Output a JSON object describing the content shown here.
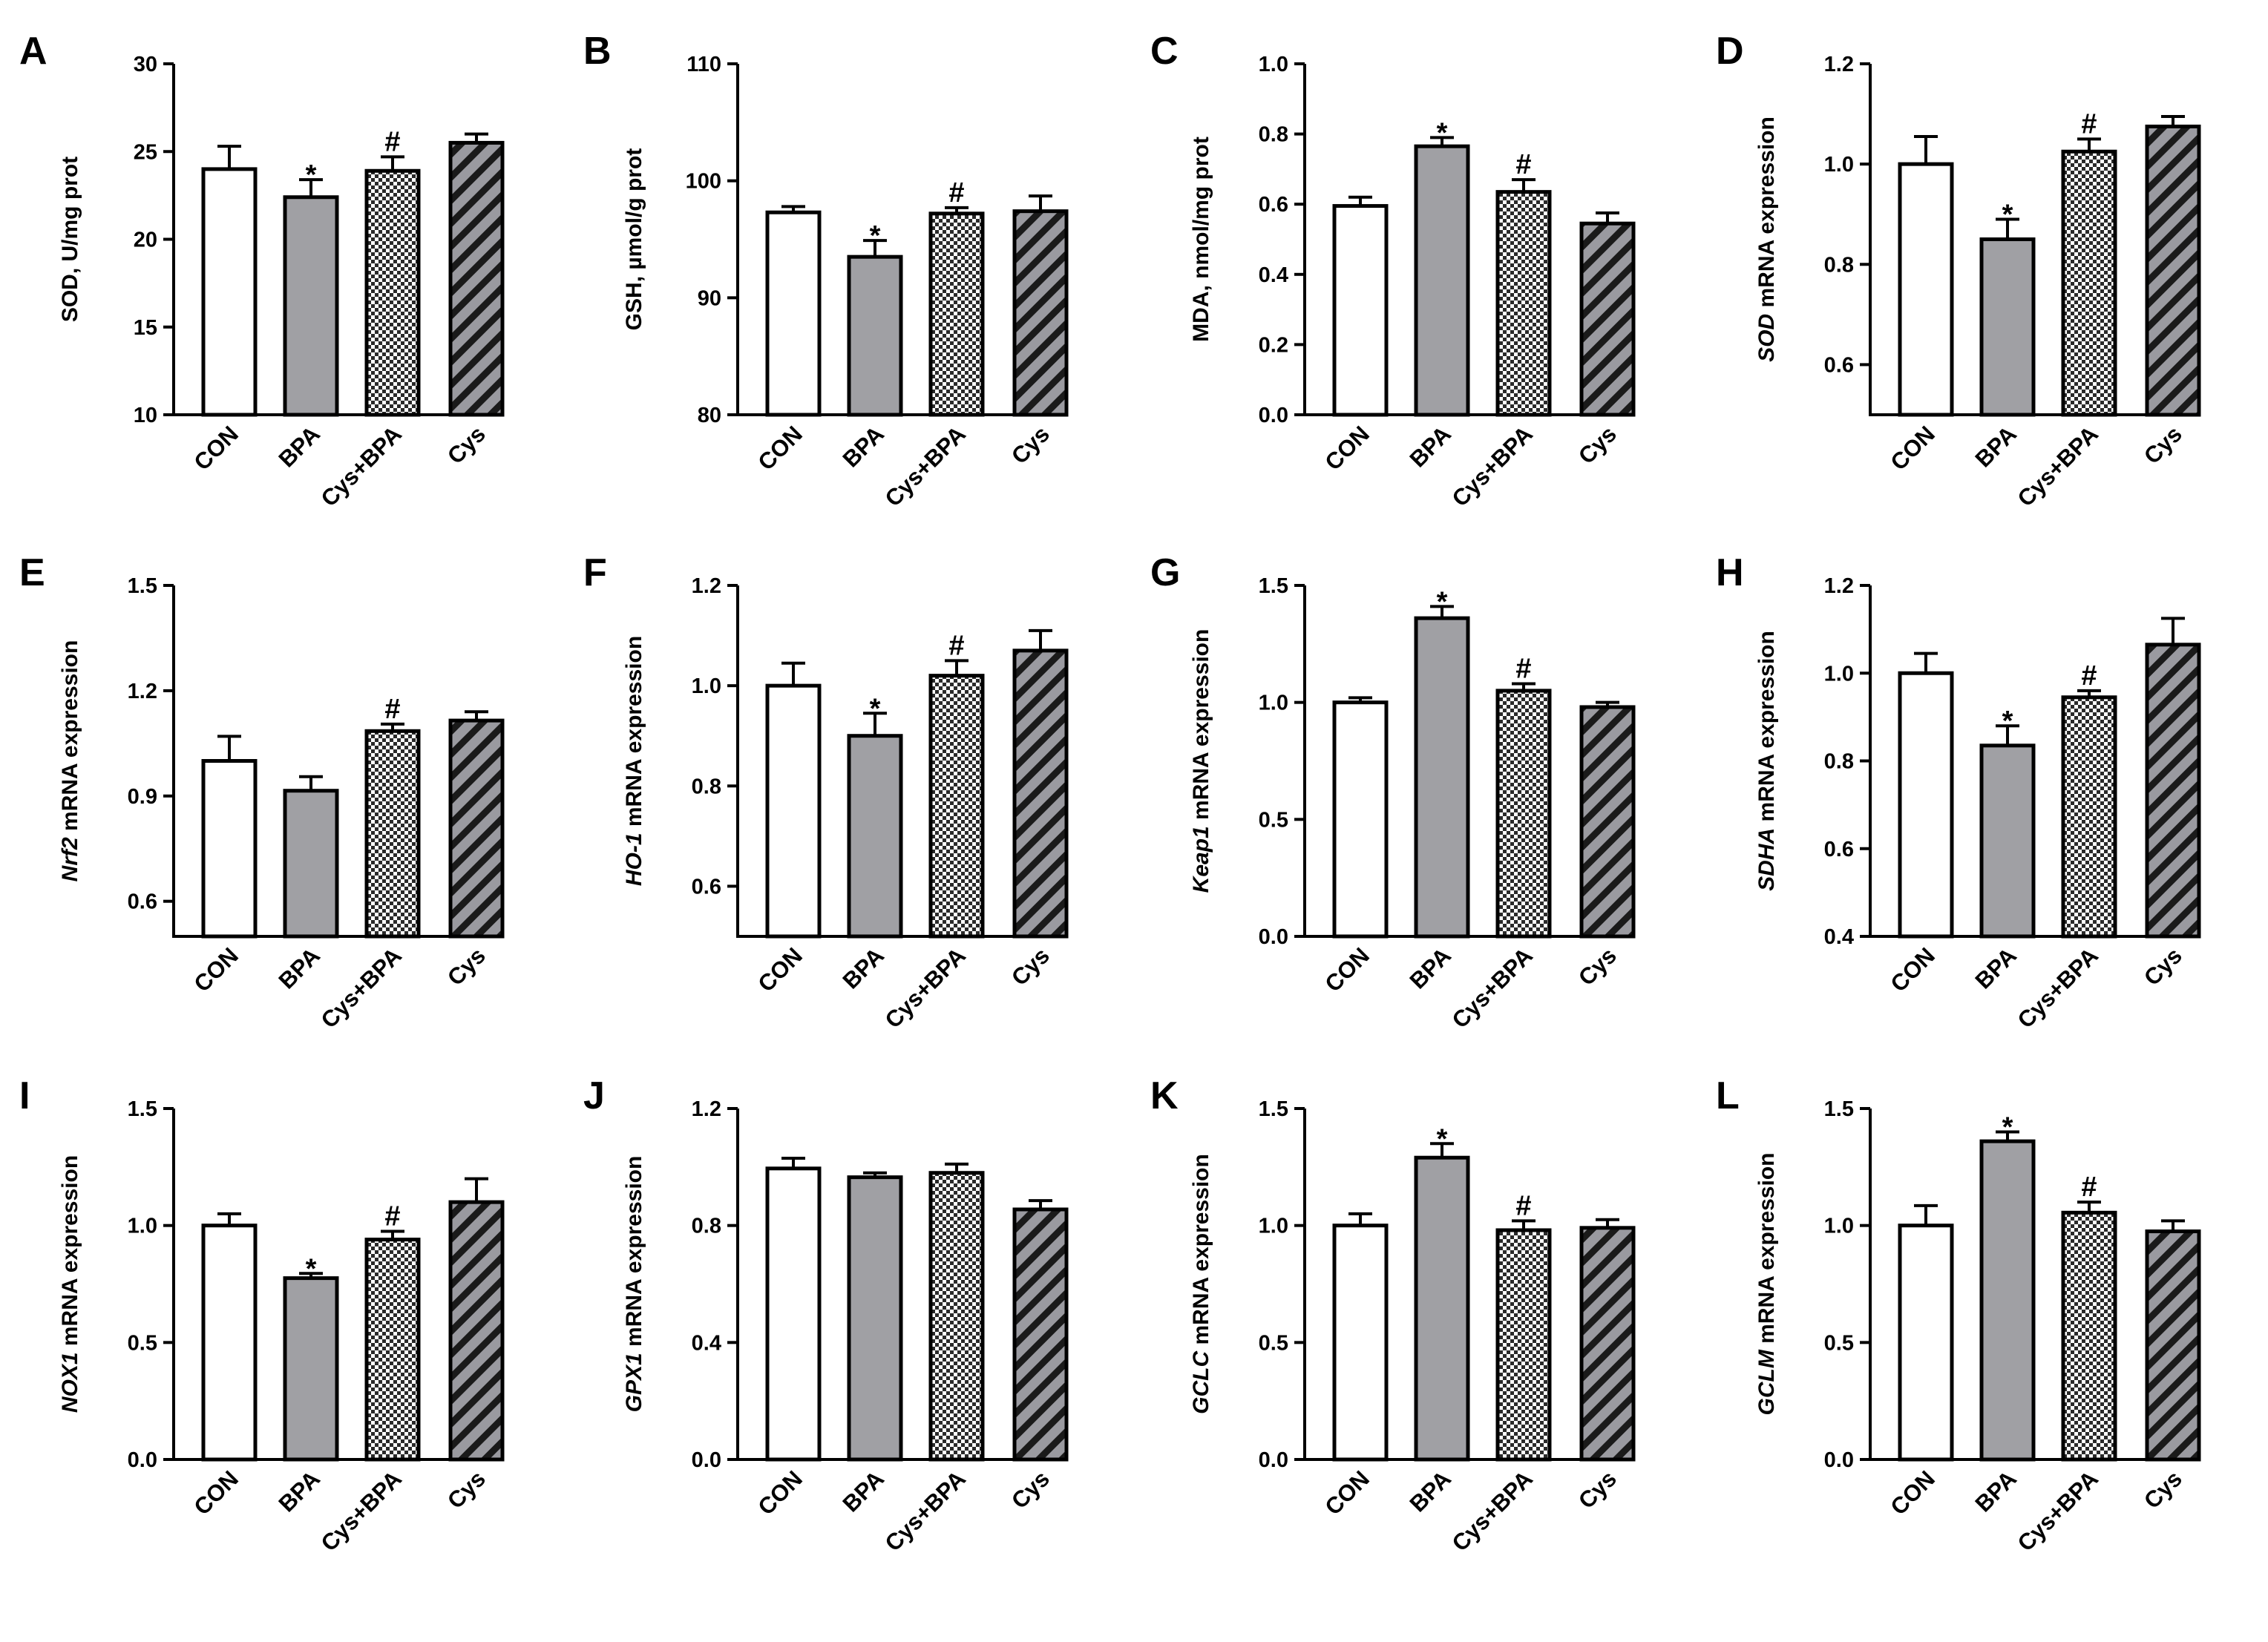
{
  "figure": {
    "categories": [
      "CON",
      "BPA",
      "Cys+BPA",
      "Cys"
    ],
    "bar_styles": [
      "white",
      "gray",
      "checker",
      "hatch"
    ],
    "colors": {
      "white": "#ffffff",
      "gray": "#a0a0a4",
      "hatch_bg": "#9a9aa0",
      "stroke": "#000000"
    }
  },
  "chart_data": [
    {
      "type": "bar",
      "panel": "A",
      "ylabel": [
        {
          "t": "SOD, U/mg prot",
          "i": false
        }
      ],
      "ylim": [
        10,
        30
      ],
      "ticks": [
        "10",
        "15",
        "20",
        "25",
        "30"
      ],
      "categories": [
        "CON",
        "BPA",
        "Cys+BPA",
        "Cys"
      ],
      "values": [
        24.0,
        22.4,
        23.9,
        25.5
      ],
      "errors": [
        1.3,
        1.0,
        0.8,
        0.5
      ],
      "marks": [
        "",
        "*",
        "#",
        ""
      ]
    },
    {
      "type": "bar",
      "panel": "B",
      "ylabel": [
        {
          "t": "GSH, µmol/g prot",
          "i": false
        }
      ],
      "ylim": [
        80,
        110
      ],
      "ticks": [
        "80",
        "90",
        "100",
        "110"
      ],
      "categories": [
        "CON",
        "BPA",
        "Cys+BPA",
        "Cys"
      ],
      "values": [
        97.3,
        93.5,
        97.2,
        97.4
      ],
      "errors": [
        0.5,
        1.4,
        0.5,
        1.3
      ],
      "marks": [
        "",
        "*",
        "#",
        ""
      ]
    },
    {
      "type": "bar",
      "panel": "C",
      "ylabel": [
        {
          "t": "MDA, nmol/mg prot",
          "i": false
        }
      ],
      "ylim": [
        0,
        1.0
      ],
      "ticks": [
        "0.0",
        "0.2",
        "0.4",
        "0.6",
        "0.8",
        "1.0"
      ],
      "categories": [
        "CON",
        "BPA",
        "Cys+BPA",
        "Cys"
      ],
      "values": [
        0.595,
        0.765,
        0.635,
        0.545
      ],
      "errors": [
        0.025,
        0.025,
        0.035,
        0.03
      ],
      "marks": [
        "",
        "*",
        "#",
        ""
      ]
    },
    {
      "type": "bar",
      "panel": "D",
      "ylabel": [
        {
          "t": "SOD",
          "i": true
        },
        {
          "t": " mRNA expression",
          "i": false
        }
      ],
      "ylim": [
        0.5,
        1.2
      ],
      "ticks": [
        "0.6",
        "0.8",
        "1.0",
        "1.2"
      ],
      "categories": [
        "CON",
        "BPA",
        "Cys+BPA",
        "Cys"
      ],
      "values": [
        1.0,
        0.85,
        1.025,
        1.075
      ],
      "errors": [
        0.055,
        0.04,
        0.025,
        0.02
      ],
      "marks": [
        "",
        "*",
        "#",
        ""
      ]
    },
    {
      "type": "bar",
      "panel": "E",
      "ylabel": [
        {
          "t": "Nrf2",
          "i": true
        },
        {
          "t": " mRNA expression",
          "i": false
        }
      ],
      "ylim": [
        0.5,
        1.5
      ],
      "ticks": [
        "0.6",
        "0.9",
        "1.2",
        "1.5"
      ],
      "categories": [
        "CON",
        "BPA",
        "Cys+BPA",
        "Cys"
      ],
      "values": [
        1.0,
        0.915,
        1.085,
        1.115
      ],
      "errors": [
        0.07,
        0.04,
        0.02,
        0.025
      ],
      "marks": [
        "",
        "",
        "#",
        ""
      ]
    },
    {
      "type": "bar",
      "panel": "F",
      "ylabel": [
        {
          "t": "HO-1",
          "i": true
        },
        {
          "t": " mRNA expression",
          "i": false
        }
      ],
      "ylim": [
        0.5,
        1.2
      ],
      "ticks": [
        "0.6",
        "0.8",
        "1.0",
        "1.2"
      ],
      "categories": [
        "CON",
        "BPA",
        "Cys+BPA",
        "Cys"
      ],
      "values": [
        1.0,
        0.9,
        1.02,
        1.07
      ],
      "errors": [
        0.045,
        0.045,
        0.03,
        0.04
      ],
      "marks": [
        "",
        "*",
        "#",
        ""
      ]
    },
    {
      "type": "bar",
      "panel": "G",
      "ylabel": [
        {
          "t": "Keap1",
          "i": true
        },
        {
          "t": " mRNA expression",
          "i": false
        }
      ],
      "ylim": [
        0,
        1.5
      ],
      "ticks": [
        "0.0",
        "0.5",
        "1.0",
        "1.5"
      ],
      "categories": [
        "CON",
        "BPA",
        "Cys+BPA",
        "Cys"
      ],
      "values": [
        1.0,
        1.36,
        1.05,
        0.98
      ],
      "errors": [
        0.02,
        0.05,
        0.03,
        0.02
      ],
      "marks": [
        "",
        "*",
        "#",
        ""
      ]
    },
    {
      "type": "bar",
      "panel": "H",
      "ylabel": [
        {
          "t": "SDHA",
          "i": true
        },
        {
          "t": " mRNA expression",
          "i": false
        }
      ],
      "ylim": [
        0.4,
        1.2
      ],
      "ticks": [
        "0.4",
        "0.6",
        "0.8",
        "1.0",
        "1.2"
      ],
      "categories": [
        "CON",
        "BPA",
        "Cys+BPA",
        "Cys"
      ],
      "values": [
        1.0,
        0.835,
        0.945,
        1.065
      ],
      "errors": [
        0.045,
        0.045,
        0.015,
        0.06
      ],
      "marks": [
        "",
        "*",
        "#",
        ""
      ]
    },
    {
      "type": "bar",
      "panel": "I",
      "ylabel": [
        {
          "t": "NOX1",
          "i": true
        },
        {
          "t": " mRNA expression",
          "i": false
        }
      ],
      "ylim": [
        0,
        1.5
      ],
      "ticks": [
        "0.0",
        "0.5",
        "1.0",
        "1.5"
      ],
      "categories": [
        "CON",
        "BPA",
        "Cys+BPA",
        "Cys"
      ],
      "values": [
        1.0,
        0.775,
        0.94,
        1.1
      ],
      "errors": [
        0.05,
        0.02,
        0.035,
        0.1
      ],
      "marks": [
        "",
        "*",
        "#",
        ""
      ]
    },
    {
      "type": "bar",
      "panel": "J",
      "ylabel": [
        {
          "t": "GPX1",
          "i": true
        },
        {
          "t": " mRNA expression",
          "i": false
        }
      ],
      "ylim": [
        0,
        1.2
      ],
      "ticks": [
        "0.0",
        "0.4",
        "0.8",
        "1.2"
      ],
      "categories": [
        "CON",
        "BPA",
        "Cys+BPA",
        "Cys"
      ],
      "values": [
        0.995,
        0.965,
        0.98,
        0.855
      ],
      "errors": [
        0.035,
        0.015,
        0.03,
        0.03
      ],
      "marks": [
        "",
        "",
        "",
        ""
      ]
    },
    {
      "type": "bar",
      "panel": "K",
      "ylabel": [
        {
          "t": "GCLC",
          "i": true
        },
        {
          "t": " mRNA expression",
          "i": false
        }
      ],
      "ylim": [
        0,
        1.5
      ],
      "ticks": [
        "0.0",
        "0.5",
        "1.0",
        "1.5"
      ],
      "categories": [
        "CON",
        "BPA",
        "Cys+BPA",
        "Cys"
      ],
      "values": [
        1.0,
        1.29,
        0.98,
        0.99
      ],
      "errors": [
        0.05,
        0.06,
        0.04,
        0.035
      ],
      "marks": [
        "",
        "*",
        "#",
        ""
      ]
    },
    {
      "type": "bar",
      "panel": "L",
      "ylabel": [
        {
          "t": "GCLM",
          "i": true
        },
        {
          "t": " mRNA expression",
          "i": false
        }
      ],
      "ylim": [
        0,
        1.5
      ],
      "ticks": [
        "0.0",
        "0.5",
        "1.0",
        "1.5"
      ],
      "categories": [
        "CON",
        "BPA",
        "Cys+BPA",
        "Cys"
      ],
      "values": [
        1.0,
        1.36,
        1.055,
        0.975
      ],
      "errors": [
        0.085,
        0.04,
        0.045,
        0.045
      ],
      "marks": [
        "",
        "*",
        "#",
        ""
      ]
    }
  ]
}
